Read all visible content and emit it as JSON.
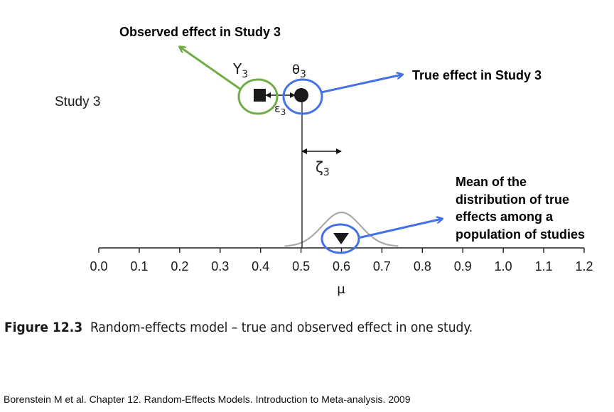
{
  "study_label": "Study 3",
  "symbols": {
    "observed": "Y",
    "observed_sub": "3",
    "true": "θ",
    "true_sub": "3",
    "error": "ε",
    "error_sub": "3",
    "deviation": "ζ",
    "deviation_sub": "3"
  },
  "callouts": {
    "observed": "Observed effect in Study 3",
    "true": "True effect in Study 3",
    "mean_lines": [
      "Mean of the",
      "distribution of true",
      "effects among a",
      "population of studies"
    ]
  },
  "axis": {
    "label": "μ",
    "min": 0.0,
    "max": 1.2,
    "ticks": [
      "0.0",
      "0.1",
      "0.2",
      "0.3",
      "0.4",
      "0.5",
      "0.6",
      "0.7",
      "0.8",
      "0.9",
      "1.0",
      "1.1",
      "1.2"
    ]
  },
  "values": {
    "observed_effect": 0.4,
    "true_effect": 0.5,
    "mean": 0.6
  },
  "colors": {
    "observed_callout": "#70ad47",
    "true_callout": "#4472e6",
    "curve": "#aaaaaa"
  },
  "caption": {
    "number": "Figure 12.3",
    "text": "Random-effects model – true and observed effect in one study."
  },
  "citation": "Borenstein M et al. Chapter 12. Random-Effects Models. Introduction to Meta-analysis. 2009"
}
